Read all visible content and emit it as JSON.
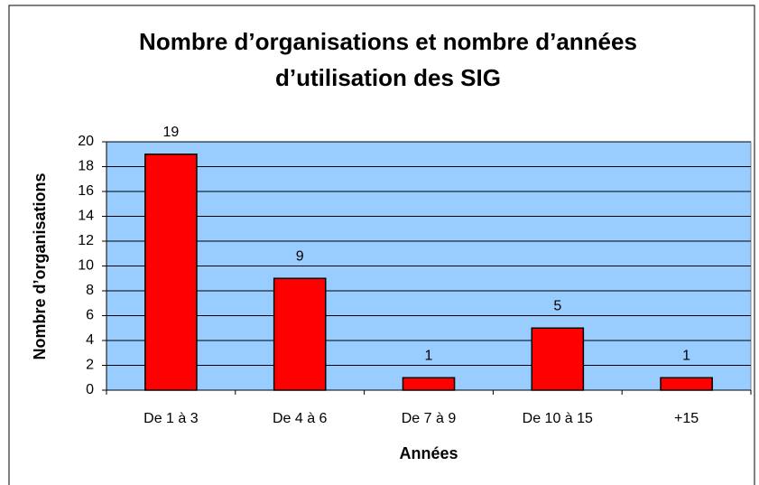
{
  "chart_data": {
    "type": "bar",
    "title": [
      "Nombre d’organisations et nombre d’années",
      "d’utilisation des SIG"
    ],
    "x_label": "Années",
    "y_label": "Nombre d’organisations",
    "categories": [
      "De 1 à 3",
      "De 4 à 6",
      "De 7 à 9",
      "De 10 à 15",
      "+15"
    ],
    "values": [
      19,
      9,
      1,
      5,
      1
    ],
    "color": "#ff0000",
    "plot_background": "#99ccff",
    "ylim": [
      0,
      20
    ],
    "yticks": [
      0,
      2,
      4,
      6,
      8,
      10,
      12,
      14,
      16,
      18,
      20
    ],
    "grid": true,
    "value_labels_shown": true
  }
}
